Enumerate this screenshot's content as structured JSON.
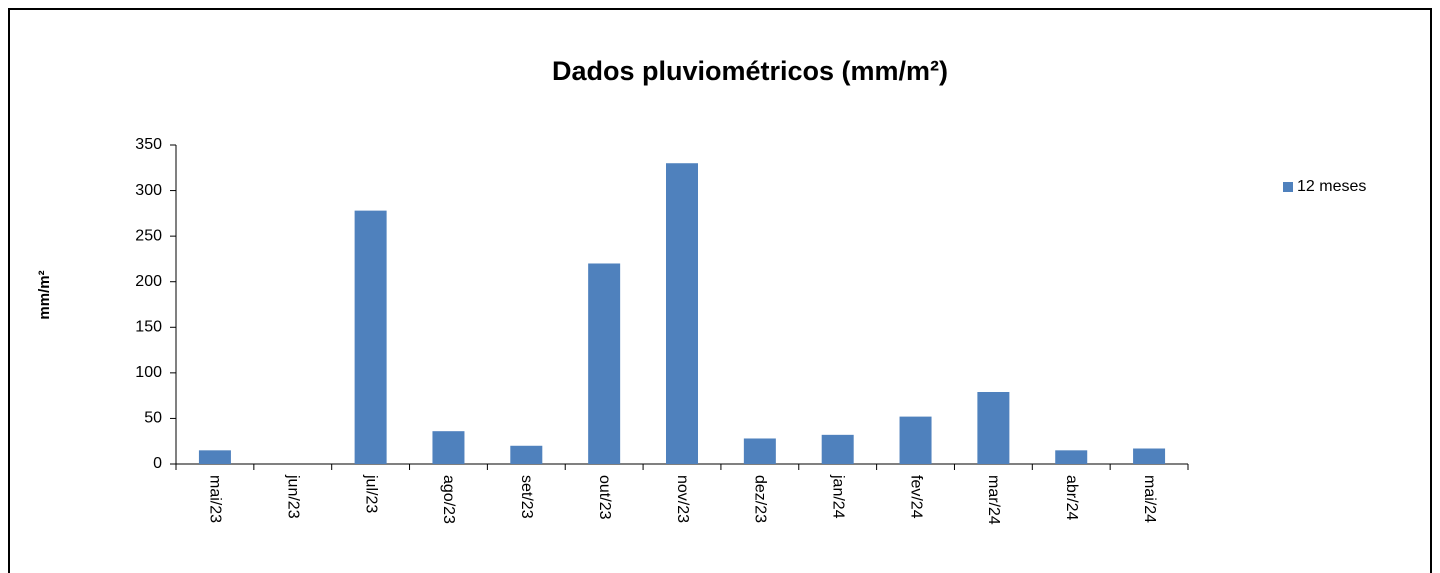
{
  "chart_data": {
    "type": "bar",
    "title": "Dados pluviométricos (mm/m²)",
    "y_label": "mm/m²",
    "categories": [
      "mai/23",
      "jun/23",
      "jul/23",
      "ago/23",
      "set/23",
      "out/23",
      "nov/23",
      "dez/23",
      "jan/24",
      "fev/24",
      "mar/24",
      "abr/24",
      "mai/24"
    ],
    "series": [
      {
        "name": "12 meses",
        "color": "#4f81bd",
        "values": [
          15,
          0,
          278,
          36,
          20,
          220,
          330,
          28,
          32,
          52,
          79,
          15,
          17
        ]
      }
    ],
    "ylim": [
      0,
      350
    ],
    "yticks": [
      0,
      50,
      100,
      150,
      200,
      250,
      300,
      350
    ],
    "legend": "right"
  }
}
